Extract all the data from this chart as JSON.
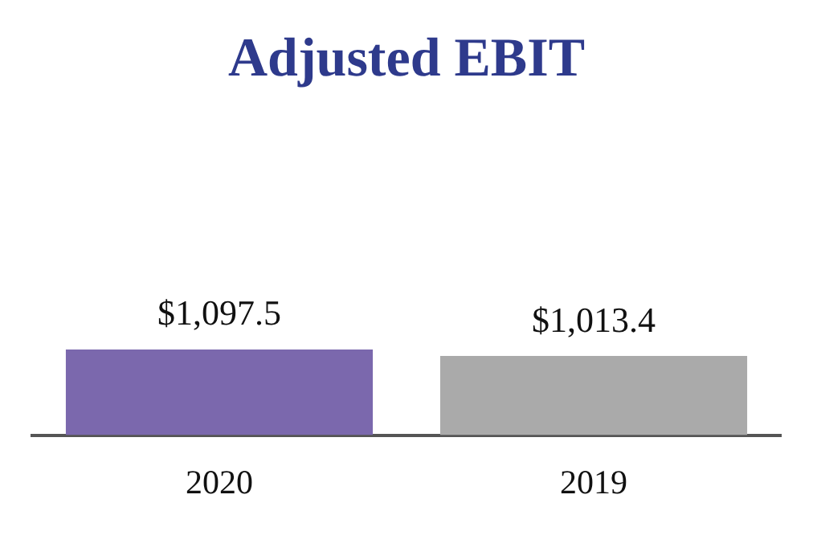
{
  "chart_data": {
    "type": "bar",
    "title": "Adjusted EBIT",
    "categories": [
      "2020",
      "2019"
    ],
    "values": [
      1097.5,
      1013.4
    ],
    "colors": [
      "#7b68ad",
      "#aaaaaa"
    ],
    "value_labels": [
      "$1,097.5",
      "$1,013.4"
    ],
    "grid": false,
    "legend": false
  }
}
